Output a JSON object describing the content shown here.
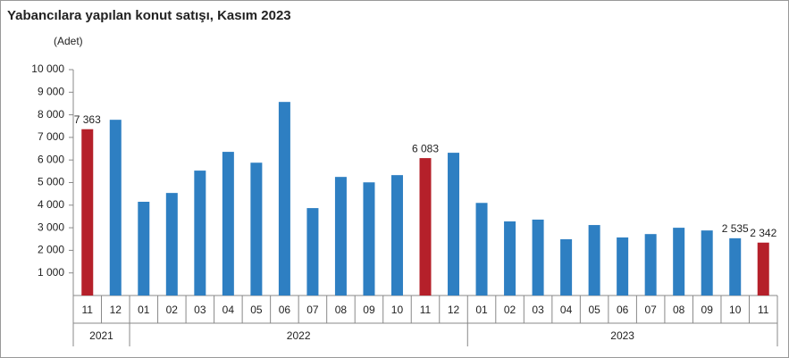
{
  "chart_data": {
    "type": "bar",
    "title": "Yabancılara yapılan konut satışı, Kasım 2023",
    "y_axis_label": "(Adet)",
    "categories": [
      "11",
      "12",
      "01",
      "02",
      "03",
      "04",
      "05",
      "06",
      "07",
      "08",
      "09",
      "10",
      "11",
      "12",
      "01",
      "02",
      "03",
      "04",
      "05",
      "06",
      "07",
      "08",
      "09",
      "10",
      "11"
    ],
    "years": [
      "2021",
      "2021",
      "2022",
      "2022",
      "2022",
      "2022",
      "2022",
      "2022",
      "2022",
      "2022",
      "2022",
      "2022",
      "2022",
      "2022",
      "2023",
      "2023",
      "2023",
      "2023",
      "2023",
      "2023",
      "2023",
      "2023",
      "2023",
      "2023",
      "2023"
    ],
    "values": [
      7363,
      7780,
      4150,
      4540,
      5530,
      6360,
      5880,
      8570,
      3870,
      5250,
      5010,
      5330,
      6083,
      6320,
      4100,
      3280,
      3360,
      2490,
      3120,
      2570,
      2720,
      3000,
      2880,
      2535,
      2342
    ],
    "value_labels": [
      "7 363",
      null,
      null,
      null,
      null,
      null,
      null,
      null,
      null,
      null,
      null,
      null,
      "6 083",
      null,
      null,
      null,
      null,
      null,
      null,
      null,
      null,
      null,
      null,
      "2 535",
      "2 342"
    ],
    "colors": [
      "#b5202a",
      "#2e7fc2",
      "#2e7fc2",
      "#2e7fc2",
      "#2e7fc2",
      "#2e7fc2",
      "#2e7fc2",
      "#2e7fc2",
      "#2e7fc2",
      "#2e7fc2",
      "#2e7fc2",
      "#2e7fc2",
      "#b5202a",
      "#2e7fc2",
      "#2e7fc2",
      "#2e7fc2",
      "#2e7fc2",
      "#2e7fc2",
      "#2e7fc2",
      "#2e7fc2",
      "#2e7fc2",
      "#2e7fc2",
      "#2e7fc2",
      "#2e7fc2",
      "#b5202a"
    ],
    "ylim": [
      0,
      10000
    ],
    "yticks": [
      {
        "value": 1000,
        "label": "1 000"
      },
      {
        "value": 2000,
        "label": "2 000"
      },
      {
        "value": 3000,
        "label": "3 000"
      },
      {
        "value": 4000,
        "label": "4 000"
      },
      {
        "value": 5000,
        "label": "5 000"
      },
      {
        "value": 6000,
        "label": "6 000"
      },
      {
        "value": 7000,
        "label": "7 000"
      },
      {
        "value": 8000,
        "label": "8 000"
      },
      {
        "value": 9000,
        "label": "9 000"
      },
      {
        "value": 10000,
        "label": "10 000"
      }
    ],
    "grid": false
  }
}
